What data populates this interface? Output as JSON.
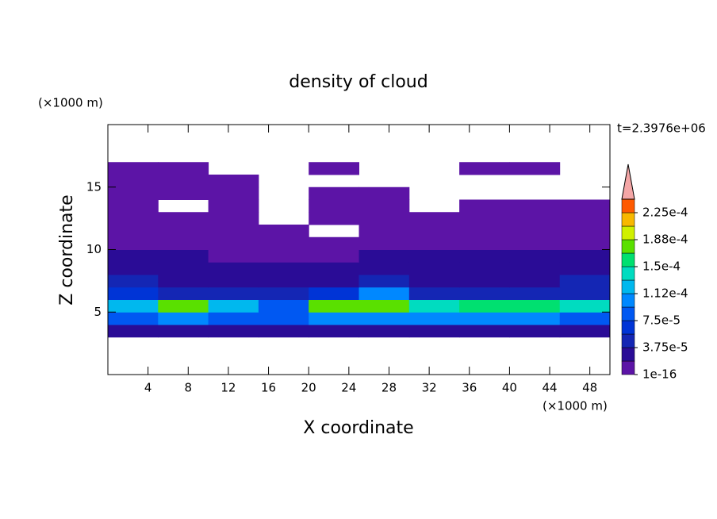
{
  "chart_data": {
    "type": "contour",
    "title": "density of cloud",
    "xlabel": "X coordinate",
    "ylabel": "Z coordinate",
    "x_unit": "(×1000 m)",
    "y_unit": "(×1000 m)",
    "annotation": "t=2.3976e+06",
    "xlim": [
      0,
      50
    ],
    "ylim": [
      0,
      20
    ],
    "xticks": [
      4,
      8,
      12,
      16,
      20,
      24,
      28,
      32,
      36,
      40,
      44,
      48
    ],
    "yticks": [
      5,
      10,
      15
    ],
    "field": {
      "x_edges": [
        0,
        5,
        10,
        15,
        20,
        25,
        30,
        35,
        40,
        45,
        50
      ],
      "z_edges": [
        3,
        4,
        5,
        6,
        7,
        8,
        9,
        10,
        11,
        12,
        13,
        14,
        15,
        16,
        17
      ],
      "values": [
        [
          2e-05,
          2.5e-05,
          2e-05,
          2.5e-05,
          2e-05,
          2.5e-05,
          2e-05,
          2.5e-05,
          2e-05,
          2e-05
        ],
        [
          9e-05,
          0.0001,
          9e-05,
          8e-05,
          0.00011,
          0.0001,
          0.0001,
          0.0001,
          0.0001,
          9e-05
        ],
        [
          0.00013,
          0.000175,
          0.00013,
          9e-05,
          0.00018,
          0.00017,
          0.00014,
          0.00015,
          0.00015,
          0.00014
        ],
        [
          6e-05,
          5e-05,
          5e-05,
          4e-05,
          7e-05,
          0.0001,
          5e-05,
          4e-05,
          4e-05,
          5e-05
        ],
        [
          4e-05,
          3e-05,
          3e-05,
          3e-05,
          3e-05,
          4e-05,
          3e-05,
          3e-05,
          3e-05,
          4e-05
        ],
        [
          3e-05,
          2.5e-05,
          2e-05,
          2e-05,
          2e-05,
          2e-05,
          2.5e-05,
          3e-05,
          2.5e-05,
          3e-05
        ],
        [
          2e-05,
          2e-05,
          1.5e-05,
          1.5e-05,
          1.5e-05,
          2e-05,
          2e-05,
          2e-05,
          2e-05,
          2e-05
        ],
        [
          1.5e-05,
          1.5e-05,
          1e-05,
          1e-05,
          5e-06,
          1e-05,
          1e-05,
          1.5e-05,
          1.5e-05,
          1.5e-05
        ],
        [
          1e-05,
          1e-05,
          1e-05,
          1e-05,
          null,
          5e-06,
          1e-05,
          1e-05,
          1e-05,
          1e-05
        ],
        [
          5e-06,
          5e-06,
          5e-06,
          null,
          5e-06,
          5e-06,
          5e-06,
          5e-06,
          5e-06,
          5e-06
        ],
        [
          5e-06,
          null,
          5e-06,
          null,
          5e-06,
          5e-06,
          null,
          5e-06,
          5e-06,
          5e-06
        ],
        [
          5e-06,
          5e-06,
          5e-06,
          null,
          5e-06,
          5e-06,
          null,
          null,
          null,
          null
        ],
        [
          5e-06,
          5e-06,
          5e-06,
          null,
          null,
          null,
          null,
          null,
          null,
          null
        ],
        [
          5e-06,
          5e-06,
          null,
          null,
          5e-06,
          null,
          null,
          5e-06,
          5e-06,
          null
        ]
      ]
    },
    "levels": [
      1e-16,
      1.875e-05,
      3.75e-05,
      5.625e-05,
      7.5e-05,
      9.375e-05,
      0.0001125,
      0.00013125,
      0.00015,
      0.00016875,
      0.0001875,
      0.00020625,
      0.000225
    ],
    "level_colors": [
      "#5c14a6",
      "#2a0c96",
      "#1426b4",
      "#0034d6",
      "#0058f2",
      "#0088ff",
      "#00b8ee",
      "#00dcc0",
      "#00e070",
      "#5ae000",
      "#d0f000",
      "#f8b800",
      "#ff5a00"
    ],
    "extend_color": "#f4a6a6",
    "colorbar_ticks": [
      {
        "value": 1e-16,
        "label": "1e-16"
      },
      {
        "value": 3.75e-05,
        "label": "3.75e-5"
      },
      {
        "value": 7.5e-05,
        "label": "7.5e-5"
      },
      {
        "value": 0.0001125,
        "label": "1.12e-4"
      },
      {
        "value": 0.00015,
        "label": "1.5e-4"
      },
      {
        "value": 0.0001875,
        "label": "1.88e-4"
      },
      {
        "value": 0.000225,
        "label": "2.25e-4"
      }
    ]
  }
}
